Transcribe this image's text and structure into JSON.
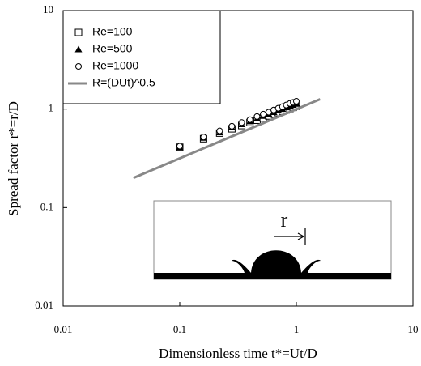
{
  "chart_data": {
    "type": "scatter",
    "x_label": "Dimensionless time t*=Ut/D",
    "y_label": "Spread factor r*=r/D",
    "xlim": [
      0.01,
      10
    ],
    "ylim": [
      0.01,
      10
    ],
    "xticks": [
      0.01,
      0.1,
      1,
      10
    ],
    "yticks": [
      0.01,
      0.1,
      1,
      10
    ],
    "log_x": true,
    "log_y": true,
    "legend": "upper left",
    "inset_label": "r",
    "series": [
      {
        "name": "Re=100",
        "marker": "square",
        "color": "#000000",
        "x": [
          0.1,
          0.16,
          0.22,
          0.28,
          0.34,
          0.4,
          0.46,
          0.52,
          0.58,
          0.64,
          0.7,
          0.76,
          0.82,
          0.88,
          0.94,
          1.0
        ],
        "values": [
          0.41,
          0.5,
          0.57,
          0.63,
          0.68,
          0.73,
          0.77,
          0.81,
          0.85,
          0.89,
          0.92,
          0.95,
          0.98,
          1.01,
          1.04,
          1.07
        ]
      },
      {
        "name": "Re=500",
        "marker": "triangle",
        "color": "#000000",
        "x": [
          0.1,
          0.16,
          0.22,
          0.28,
          0.34,
          0.4,
          0.46,
          0.52,
          0.58,
          0.64,
          0.7,
          0.76,
          0.82,
          0.88,
          0.94,
          1.0
        ],
        "values": [
          0.41,
          0.51,
          0.58,
          0.65,
          0.7,
          0.75,
          0.8,
          0.85,
          0.89,
          0.93,
          0.97,
          1.0,
          1.04,
          1.07,
          1.1,
          1.13
        ]
      },
      {
        "name": "Re=1000",
        "marker": "circle",
        "color": "#000000",
        "x": [
          0.1,
          0.16,
          0.22,
          0.28,
          0.34,
          0.4,
          0.46,
          0.52,
          0.58,
          0.64,
          0.7,
          0.76,
          0.82,
          0.88,
          0.94,
          1.0
        ],
        "values": [
          0.42,
          0.52,
          0.6,
          0.67,
          0.73,
          0.78,
          0.84,
          0.89,
          0.93,
          0.98,
          1.02,
          1.06,
          1.1,
          1.14,
          1.17,
          1.2
        ]
      },
      {
        "name": "R=(DUt)^0.5",
        "marker": "line",
        "color": "#888888",
        "x": [
          0.04,
          1.6
        ],
        "values": [
          0.2,
          1.26
        ]
      }
    ]
  }
}
